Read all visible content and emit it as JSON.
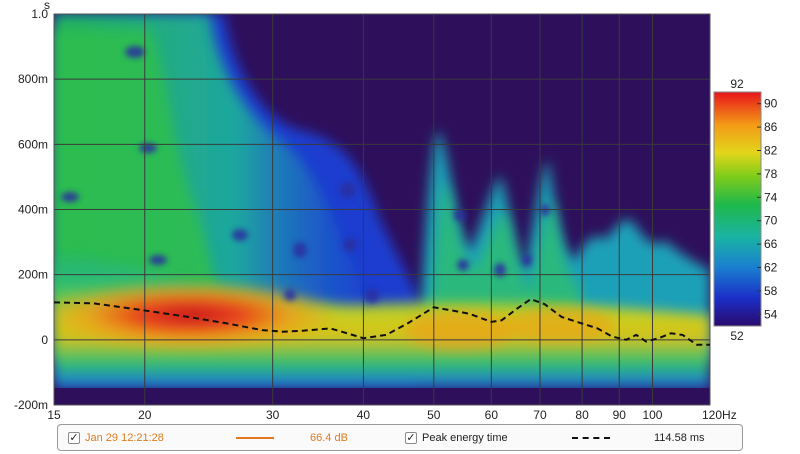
{
  "chart_data": {
    "type": "heatmap",
    "title": "",
    "xlabel": "",
    "ylabel": "",
    "x_unit": "Hz",
    "y_unit": "s",
    "x_scale": "log",
    "xlim": [
      15,
      120
    ],
    "ylim": [
      -0.2,
      1.0
    ],
    "x_ticks": [
      15,
      20,
      30,
      40,
      50,
      60,
      70,
      80,
      90,
      100,
      120
    ],
    "x_tick_labels": [
      "15",
      "20",
      "30",
      "40",
      "50",
      "60",
      "70",
      "80",
      "90",
      "100",
      "120Hz"
    ],
    "y_ticks": [
      -0.2,
      0,
      0.2,
      0.4,
      0.6,
      0.8,
      1.0
    ],
    "y_tick_labels": [
      "-200m",
      "0",
      "200m",
      "400m",
      "600m",
      "800m",
      "1.0"
    ],
    "grid": true,
    "colorbar": {
      "unit": "dB",
      "min": 52,
      "max": 92,
      "ticks": [
        54,
        58,
        62,
        66,
        70,
        74,
        78,
        82,
        86,
        90
      ],
      "top_label": "92",
      "bottom_label": "52"
    },
    "peak_energy_time": {
      "name": "Peak energy time",
      "x": [
        15,
        17,
        20,
        23,
        26,
        29,
        31,
        33,
        36,
        38,
        40,
        43,
        46,
        50,
        53,
        56,
        60,
        62,
        65,
        68,
        71,
        75,
        80,
        84,
        88,
        92,
        95,
        98,
        102,
        106,
        110,
        115,
        120
      ],
      "y": [
        0.115,
        0.112,
        0.09,
        0.07,
        0.05,
        0.03,
        0.025,
        0.028,
        0.035,
        0.02,
        0.005,
        0.015,
        0.05,
        0.1,
        0.09,
        0.08,
        0.055,
        0.06,
        0.095,
        0.125,
        0.11,
        0.07,
        0.05,
        0.035,
        0.01,
        0.0,
        0.015,
        -0.005,
        0.005,
        0.02,
        0.015,
        -0.015,
        -0.015
      ]
    },
    "legend_placement": "bottom"
  },
  "legend": {
    "item1": {
      "label": "Jan 29 12:21:28",
      "value": "66.4 dB",
      "color": "#e07b1f",
      "checked": "✓"
    },
    "item2": {
      "label": "Peak energy time",
      "value": "114.58 ms",
      "color": "#111111",
      "checked": "✓"
    }
  },
  "colors": {
    "background": "#2e0f5c",
    "grid": "#3a3a3a"
  }
}
